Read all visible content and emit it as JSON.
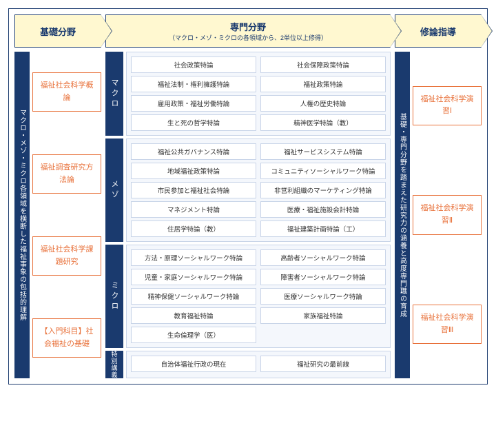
{
  "colors": {
    "navy": "#1a3a6e",
    "orange": "#e8713a",
    "header_bg": "#fff8d0",
    "section_bg": "#f4f7fc",
    "section_border": "#c8d4e8"
  },
  "col1": {
    "header": "基礎分野",
    "vtext": "マクロ・メゾ・ミクロ各領域を横断した福祉事象の包括的理解",
    "cards": [
      "福祉社会科学概論",
      "福祉調査研究方法論",
      "福祉社会科学課題研究",
      "【入門科目】社会福祉の基礎"
    ]
  },
  "col2": {
    "header": "専門分野",
    "subheader": "（マクロ・メゾ・ミクロの各領域から、2単位以上修得）",
    "sections": [
      {
        "label": "マクロ",
        "rows": [
          [
            "社会政策特論",
            "社会保障政策特論"
          ],
          [
            "福祉法制・権利擁護特論",
            "福祉政策特論"
          ],
          [
            "雇用政策・福祉労働特論",
            "人権の歴史特論"
          ],
          [
            "生と死の哲学特論",
            "精神医学特論（教）"
          ]
        ]
      },
      {
        "label": "メゾ",
        "rows": [
          [
            "福祉公共ガバナンス特論",
            "福祉サービスシステム特論"
          ],
          [
            "地域福祉政策特論",
            "コミュニティソーシャルワーク特論"
          ],
          [
            "市民参加と福祉社会特論",
            "非営利組織のマーケティング特論"
          ],
          [
            "マネジメント特論",
            "医療・福祉施設会計特論"
          ],
          [
            "住居学特論（教）",
            "福祉建築計画特論（工）"
          ]
        ]
      },
      {
        "label": "ミクロ",
        "rows": [
          [
            "方法・原理ソーシャルワーク特論",
            "高齢者ソーシャルワーク特論"
          ],
          [
            "児童・家庭ソーシャルワーク特論",
            "障害者ソーシャルワーク特論"
          ],
          [
            "精神保健ソーシャルワーク特論",
            "医療ソーシャルワーク特論"
          ],
          [
            "教育福祉特論",
            "家族福祉特論"
          ],
          [
            "生命倫理学（医）",
            ""
          ]
        ]
      },
      {
        "label": "特別講義",
        "rows": [
          [
            "自治体福祉行政の現在",
            "福祉研究の最前線"
          ]
        ]
      }
    ]
  },
  "col3": {
    "header": "修論指導",
    "vtext": "基礎・専門分野を踏まえた研究力の涵養と高度専門職の育成",
    "cards": [
      "福祉社会科学演習Ⅰ",
      "福祉社会科学演習Ⅱ",
      "福祉社会科学演習Ⅲ"
    ]
  }
}
